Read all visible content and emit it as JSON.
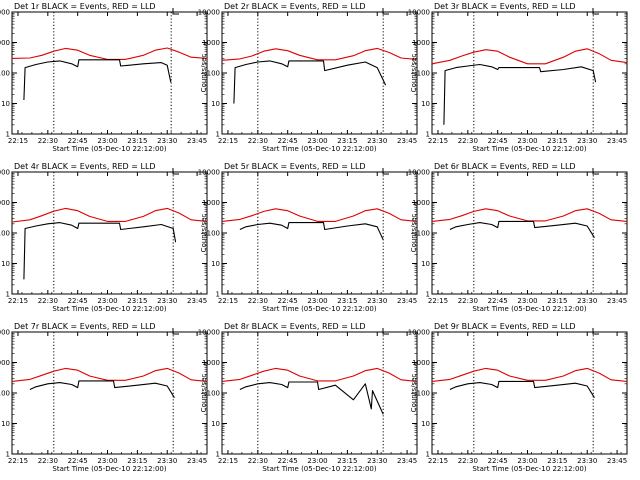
{
  "colors": {
    "events": "#000000",
    "lld": "#e00000",
    "frame": "#000000",
    "background": "#ffffff"
  },
  "chart_data": [
    {
      "type": "line",
      "title": "Det 1r BLACK = Events, RED = LLD",
      "xlabel": "Start Time (05-Dec-10 22:12:00)",
      "ylabel": "Counts/sec",
      "xlim": [
        22.2,
        23.833
      ],
      "ylim": [
        1,
        10000
      ],
      "yscale": "log",
      "xticks": [
        "22:15",
        "22:30",
        "22:45",
        "23:00",
        "23:15",
        "23:30",
        "23:45"
      ],
      "yticks": [
        "1",
        "10",
        "100",
        "1000",
        "10000"
      ],
      "marker_lines": [
        22.55,
        23.533
      ],
      "series": [
        {
          "color": "red",
          "x": [
            22.2,
            22.35,
            22.45,
            22.55,
            22.65,
            22.75,
            22.85,
            23.0,
            23.15,
            23.3,
            23.4,
            23.5,
            23.6,
            23.7,
            23.833
          ],
          "y": [
            300,
            310,
            380,
            520,
            640,
            560,
            380,
            280,
            280,
            380,
            560,
            660,
            480,
            330,
            300
          ]
        },
        {
          "color": "black",
          "x": [
            22.3,
            22.31,
            22.4,
            22.5,
            22.6,
            22.7,
            22.75,
            22.76,
            23.1,
            23.11,
            23.3,
            23.45,
            23.5,
            23.53
          ],
          "y": [
            13,
            150,
            190,
            230,
            250,
            200,
            160,
            270,
            270,
            170,
            200,
            220,
            180,
            50
          ]
        }
      ]
    },
    {
      "type": "line",
      "title": "Det 2r BLACK = Events, RED = LLD",
      "xlabel": "Start Time (05-Dec-10 22:12:00)",
      "ylabel": "Counts/sec",
      "xlim": [
        22.2,
        23.833
      ],
      "ylim": [
        1,
        10000
      ],
      "yscale": "log",
      "xticks": [
        "22:15",
        "22:30",
        "22:45",
        "23:00",
        "23:15",
        "23:30",
        "23:45"
      ],
      "yticks": [
        "1",
        "10",
        "100",
        "1000",
        "10000"
      ],
      "marker_lines": [
        22.5,
        23.55
      ],
      "series": [
        {
          "color": "red",
          "x": [
            22.2,
            22.35,
            22.45,
            22.55,
            22.65,
            22.75,
            22.85,
            23.0,
            23.15,
            23.3,
            23.4,
            23.5,
            23.6,
            23.7,
            23.833
          ],
          "y": [
            260,
            290,
            360,
            520,
            620,
            540,
            380,
            270,
            270,
            370,
            540,
            640,
            470,
            310,
            280
          ]
        },
        {
          "color": "black",
          "x": [
            22.3,
            22.31,
            22.4,
            22.5,
            22.6,
            22.7,
            22.75,
            22.76,
            23.05,
            23.06,
            23.25,
            23.4,
            23.5,
            23.57
          ],
          "y": [
            10,
            150,
            190,
            230,
            250,
            200,
            160,
            250,
            250,
            120,
            180,
            230,
            150,
            40
          ]
        }
      ]
    },
    {
      "type": "line",
      "title": "Det 3r BLACK = Events, RED = LLD",
      "xlabel": "Start Time (05-Dec-10 22:12:00)",
      "ylabel": "Counts/sec",
      "xlim": [
        22.2,
        23.833
      ],
      "ylim": [
        1,
        10000
      ],
      "yscale": "log",
      "xticks": [
        "22:15",
        "22:30",
        "22:45",
        "23:00",
        "23:15",
        "23:30",
        "23:45"
      ],
      "yticks": [
        "1",
        "10",
        "100",
        "1000",
        "10000"
      ],
      "marker_lines": [
        22.55,
        23.55
      ],
      "series": [
        {
          "color": "red",
          "x": [
            22.2,
            22.35,
            22.45,
            22.55,
            22.65,
            22.75,
            22.85,
            23.0,
            23.15,
            23.3,
            23.4,
            23.5,
            23.6,
            23.7,
            23.833
          ],
          "y": [
            200,
            260,
            360,
            480,
            580,
            520,
            330,
            200,
            200,
            330,
            520,
            620,
            430,
            260,
            220
          ]
        },
        {
          "color": "black",
          "x": [
            22.3,
            22.31,
            22.4,
            22.5,
            22.6,
            22.7,
            22.75,
            22.76,
            23.1,
            23.11,
            23.3,
            23.45,
            23.55,
            23.57
          ],
          "y": [
            2,
            120,
            150,
            170,
            190,
            160,
            130,
            150,
            150,
            110,
            130,
            160,
            120,
            50
          ]
        }
      ]
    },
    {
      "type": "line",
      "title": "Det 4r BLACK = Events, RED = LLD",
      "xlabel": "Start Time (05-Dec-10 22:12:00)",
      "ylabel": "Counts/sec",
      "xlim": [
        22.2,
        23.833
      ],
      "ylim": [
        1,
        10000
      ],
      "yscale": "log",
      "xticks": [
        "22:15",
        "22:30",
        "22:45",
        "23:00",
        "23:15",
        "23:30",
        "23:45"
      ],
      "yticks": [
        "1",
        "10",
        "100",
        "1000",
        "10000"
      ],
      "marker_lines": [
        22.55,
        23.55
      ],
      "series": [
        {
          "color": "red",
          "x": [
            22.2,
            22.35,
            22.45,
            22.55,
            22.65,
            22.75,
            22.85,
            23.0,
            23.15,
            23.3,
            23.4,
            23.5,
            23.6,
            23.7,
            23.833
          ],
          "y": [
            230,
            270,
            370,
            520,
            640,
            540,
            350,
            240,
            240,
            350,
            540,
            640,
            450,
            270,
            240
          ]
        },
        {
          "color": "black",
          "x": [
            22.3,
            22.31,
            22.4,
            22.5,
            22.6,
            22.7,
            22.75,
            22.76,
            23.1,
            23.11,
            23.3,
            23.45,
            23.55,
            23.57
          ],
          "y": [
            3,
            140,
            170,
            200,
            220,
            180,
            140,
            210,
            210,
            130,
            160,
            190,
            140,
            50
          ]
        }
      ]
    },
    {
      "type": "line",
      "title": "Det 5r BLACK = Events, RED = LLD",
      "xlabel": "Start Time (05-Dec-10 22:12:00)",
      "ylabel": "Counts/sec",
      "xlim": [
        22.2,
        23.833
      ],
      "ylim": [
        1,
        10000
      ],
      "yscale": "log",
      "xticks": [
        "22:15",
        "22:30",
        "22:45",
        "23:00",
        "23:15",
        "23:30",
        "23:45"
      ],
      "yticks": [
        "1",
        "10",
        "100",
        "1000",
        "10000"
      ],
      "marker_lines": [
        22.5,
        23.55
      ],
      "series": [
        {
          "color": "red",
          "x": [
            22.2,
            22.35,
            22.45,
            22.55,
            22.65,
            22.75,
            22.85,
            23.0,
            23.15,
            23.3,
            23.4,
            23.5,
            23.6,
            23.7,
            23.833
          ],
          "y": [
            240,
            280,
            370,
            510,
            620,
            540,
            360,
            240,
            240,
            360,
            540,
            620,
            440,
            270,
            240
          ]
        },
        {
          "color": "black",
          "x": [
            22.35,
            22.4,
            22.5,
            22.6,
            22.7,
            22.75,
            22.76,
            23.05,
            23.06,
            23.25,
            23.4,
            23.5,
            23.55
          ],
          "y": [
            130,
            160,
            190,
            210,
            180,
            140,
            220,
            220,
            130,
            170,
            200,
            160,
            60
          ]
        }
      ]
    },
    {
      "type": "line",
      "title": "Det 6r BLACK = Events, RED = LLD",
      "xlabel": "Start Time (05-Dec-10 22:12:00)",
      "ylabel": "Counts/sec",
      "xlim": [
        22.2,
        23.833
      ],
      "ylim": [
        1,
        10000
      ],
      "yscale": "log",
      "xticks": [
        "22:15",
        "22:30",
        "22:45",
        "23:00",
        "23:15",
        "23:30",
        "23:45"
      ],
      "yticks": [
        "1",
        "10",
        "100",
        "1000",
        "10000"
      ],
      "marker_lines": [
        22.55,
        23.55
      ],
      "series": [
        {
          "color": "red",
          "x": [
            22.2,
            22.35,
            22.45,
            22.55,
            22.65,
            22.75,
            22.85,
            23.0,
            23.15,
            23.3,
            23.4,
            23.5,
            23.6,
            23.7,
            23.833
          ],
          "y": [
            240,
            280,
            370,
            510,
            620,
            540,
            360,
            250,
            250,
            360,
            540,
            620,
            440,
            270,
            240
          ]
        },
        {
          "color": "black",
          "x": [
            22.35,
            22.4,
            22.5,
            22.6,
            22.7,
            22.75,
            22.76,
            23.05,
            23.06,
            23.25,
            23.4,
            23.5,
            23.56
          ],
          "y": [
            130,
            160,
            190,
            220,
            190,
            150,
            240,
            240,
            150,
            180,
            210,
            170,
            70
          ]
        }
      ]
    },
    {
      "type": "line",
      "title": "Det 7r BLACK = Events, RED = LLD",
      "xlabel": "Start Time (05-Dec-10 22:12:00)",
      "ylabel": "Counts/sec",
      "xlim": [
        22.2,
        23.833
      ],
      "ylim": [
        1,
        10000
      ],
      "yscale": "log",
      "xticks": [
        "22:15",
        "22:30",
        "22:45",
        "23:00",
        "23:15",
        "23:30",
        "23:45"
      ],
      "yticks": [
        "1",
        "10",
        "100",
        "1000",
        "10000"
      ],
      "marker_lines": [
        22.55,
        23.55
      ],
      "series": [
        {
          "color": "red",
          "x": [
            22.2,
            22.35,
            22.45,
            22.55,
            22.65,
            22.75,
            22.85,
            23.0,
            23.15,
            23.3,
            23.4,
            23.5,
            23.6,
            23.7,
            23.833
          ],
          "y": [
            240,
            280,
            380,
            520,
            640,
            560,
            360,
            260,
            260,
            360,
            540,
            640,
            450,
            270,
            240
          ]
        },
        {
          "color": "black",
          "x": [
            22.35,
            22.4,
            22.5,
            22.6,
            22.7,
            22.75,
            22.76,
            23.05,
            23.06,
            23.25,
            23.4,
            23.5,
            23.56
          ],
          "y": [
            130,
            160,
            200,
            220,
            190,
            150,
            250,
            250,
            150,
            180,
            210,
            170,
            70
          ]
        }
      ]
    },
    {
      "type": "line",
      "title": "Det 8r BLACK = Events, RED = LLD",
      "xlabel": "Start Time (05-Dec-10 22:12:00)",
      "ylabel": "Counts/sec",
      "xlim": [
        22.2,
        23.833
      ],
      "ylim": [
        1,
        10000
      ],
      "yscale": "log",
      "xticks": [
        "22:15",
        "22:30",
        "22:45",
        "23:00",
        "23:15",
        "23:30",
        "23:45"
      ],
      "yticks": [
        "1",
        "10",
        "100",
        "1000",
        "10000"
      ],
      "marker_lines": [
        22.5,
        23.55
      ],
      "series": [
        {
          "color": "red",
          "x": [
            22.2,
            22.35,
            22.45,
            22.55,
            22.65,
            22.75,
            22.85,
            23.0,
            23.15,
            23.3,
            23.4,
            23.5,
            23.6,
            23.7,
            23.833
          ],
          "y": [
            240,
            280,
            380,
            520,
            640,
            560,
            360,
            250,
            250,
            360,
            540,
            640,
            450,
            270,
            240
          ]
        },
        {
          "color": "black",
          "x": [
            22.35,
            22.4,
            22.5,
            22.6,
            22.7,
            22.75,
            22.76,
            23.0,
            23.01,
            23.15,
            23.3,
            23.4,
            23.45,
            23.46,
            23.55
          ],
          "y": [
            130,
            160,
            200,
            220,
            190,
            150,
            230,
            230,
            130,
            180,
            60,
            200,
            30,
            120,
            20
          ]
        }
      ]
    },
    {
      "type": "line",
      "title": "Det 9r BLACK = Events, RED = LLD",
      "xlabel": "Start Time (05-Dec-10 22:12:00)",
      "ylabel": "Counts/sec",
      "xlim": [
        22.2,
        23.833
      ],
      "ylim": [
        1,
        10000
      ],
      "yscale": "log",
      "xticks": [
        "22:15",
        "22:30",
        "22:45",
        "23:00",
        "23:15",
        "23:30",
        "23:45"
      ],
      "yticks": [
        "1",
        "10",
        "100",
        "1000",
        "10000"
      ],
      "marker_lines": [
        22.55,
        23.55
      ],
      "series": [
        {
          "color": "red",
          "x": [
            22.2,
            22.35,
            22.45,
            22.55,
            22.65,
            22.75,
            22.85,
            23.0,
            23.15,
            23.3,
            23.4,
            23.5,
            23.6,
            23.7,
            23.833
          ],
          "y": [
            240,
            280,
            380,
            520,
            640,
            560,
            360,
            260,
            260,
            360,
            540,
            640,
            450,
            270,
            240
          ]
        },
        {
          "color": "black",
          "x": [
            22.35,
            22.4,
            22.5,
            22.6,
            22.7,
            22.75,
            22.76,
            23.05,
            23.06,
            23.25,
            23.4,
            23.5,
            23.56
          ],
          "y": [
            130,
            160,
            200,
            220,
            190,
            150,
            240,
            240,
            150,
            180,
            210,
            170,
            70
          ]
        }
      ]
    }
  ]
}
